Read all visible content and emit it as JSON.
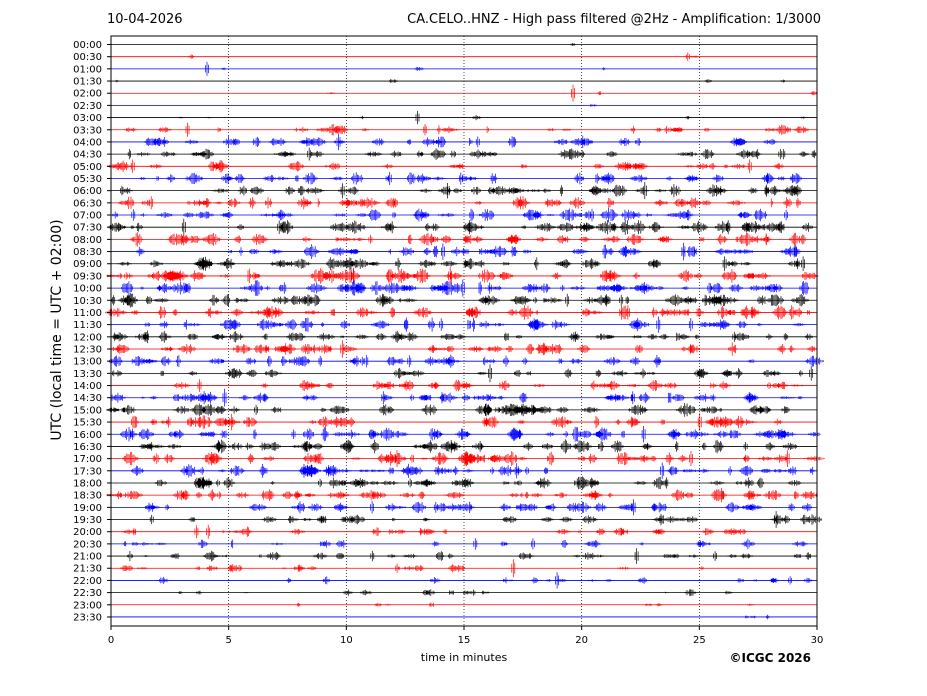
{
  "header": {
    "date": "10-04-2026",
    "title": "CA.CELO..HNZ - High pass filtered @2Hz - Amplification: 1/3000"
  },
  "footer": {
    "copyright": "©ICGC 2026"
  },
  "colors": {
    "trace_a": "#ff0000",
    "trace_b": "#0000ff",
    "grid": "#000000",
    "axes": "#000000"
  },
  "chart_data": {
    "type": "line",
    "xlabel": "time in minutes",
    "ylabel": "UTC (local time = UTC + 02:00)",
    "xlim": [
      0,
      30
    ],
    "xticks": [
      0,
      5,
      10,
      15,
      20,
      25,
      30
    ],
    "vertical_grid_minutes": [
      5,
      10,
      15,
      20,
      25
    ],
    "grid": "dotted vertical",
    "ytick_labels": [
      "00:00",
      "00:30",
      "01:00",
      "01:30",
      "02:00",
      "02:30",
      "03:00",
      "03:30",
      "04:00",
      "04:30",
      "05:00",
      "05:30",
      "06:00",
      "06:30",
      "07:00",
      "07:30",
      "08:00",
      "08:30",
      "09:00",
      "09:30",
      "10:00",
      "10:30",
      "11:00",
      "11:30",
      "12:00",
      "12:30",
      "13:00",
      "13:30",
      "14:00",
      "14:30",
      "15:00",
      "15:30",
      "16:00",
      "16:30",
      "17:00",
      "17:30",
      "18:00",
      "18:30",
      "19:00",
      "19:30",
      "20:00",
      "20:30",
      "21:00",
      "21:30",
      "22:00",
      "22:30",
      "23:00",
      "23:30"
    ],
    "trace_colors_alternate": [
      "#000000",
      "#ff0000",
      "#0000ff"
    ],
    "trace_activity": [
      0.02,
      0.03,
      0.06,
      0.08,
      0.05,
      0.03,
      0.1,
      0.5,
      0.6,
      0.65,
      0.55,
      0.7,
      0.7,
      0.7,
      0.75,
      0.8,
      0.75,
      0.75,
      0.75,
      0.85,
      0.9,
      0.8,
      0.8,
      0.75,
      0.7,
      0.7,
      0.65,
      0.6,
      0.6,
      0.7,
      0.8,
      0.75,
      0.8,
      0.75,
      0.8,
      0.75,
      0.7,
      0.8,
      0.7,
      0.5,
      0.45,
      0.4,
      0.45,
      0.35,
      0.3,
      0.25,
      0.12,
      0.05
    ]
  }
}
